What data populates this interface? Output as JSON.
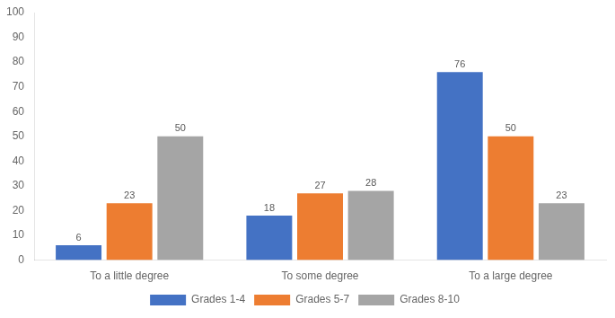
{
  "chart_data": {
    "type": "bar",
    "categories": [
      "To a little degree",
      "To some degree",
      "To a large degree"
    ],
    "series": [
      {
        "name": "Grades 1-4",
        "color": "#4472C4",
        "values": [
          6,
          18,
          76
        ]
      },
      {
        "name": "Grades 5-7",
        "color": "#ED7D31",
        "values": [
          23,
          27,
          50
        ]
      },
      {
        "name": "Grades 8-10",
        "color": "#A5A5A5",
        "values": [
          50,
          28,
          23
        ]
      }
    ],
    "ylim": [
      0,
      100
    ],
    "yticks": [
      0,
      10,
      20,
      30,
      40,
      50,
      60,
      70,
      80,
      90,
      100
    ],
    "grid": false,
    "legend": "bottom",
    "data_labels": true
  }
}
